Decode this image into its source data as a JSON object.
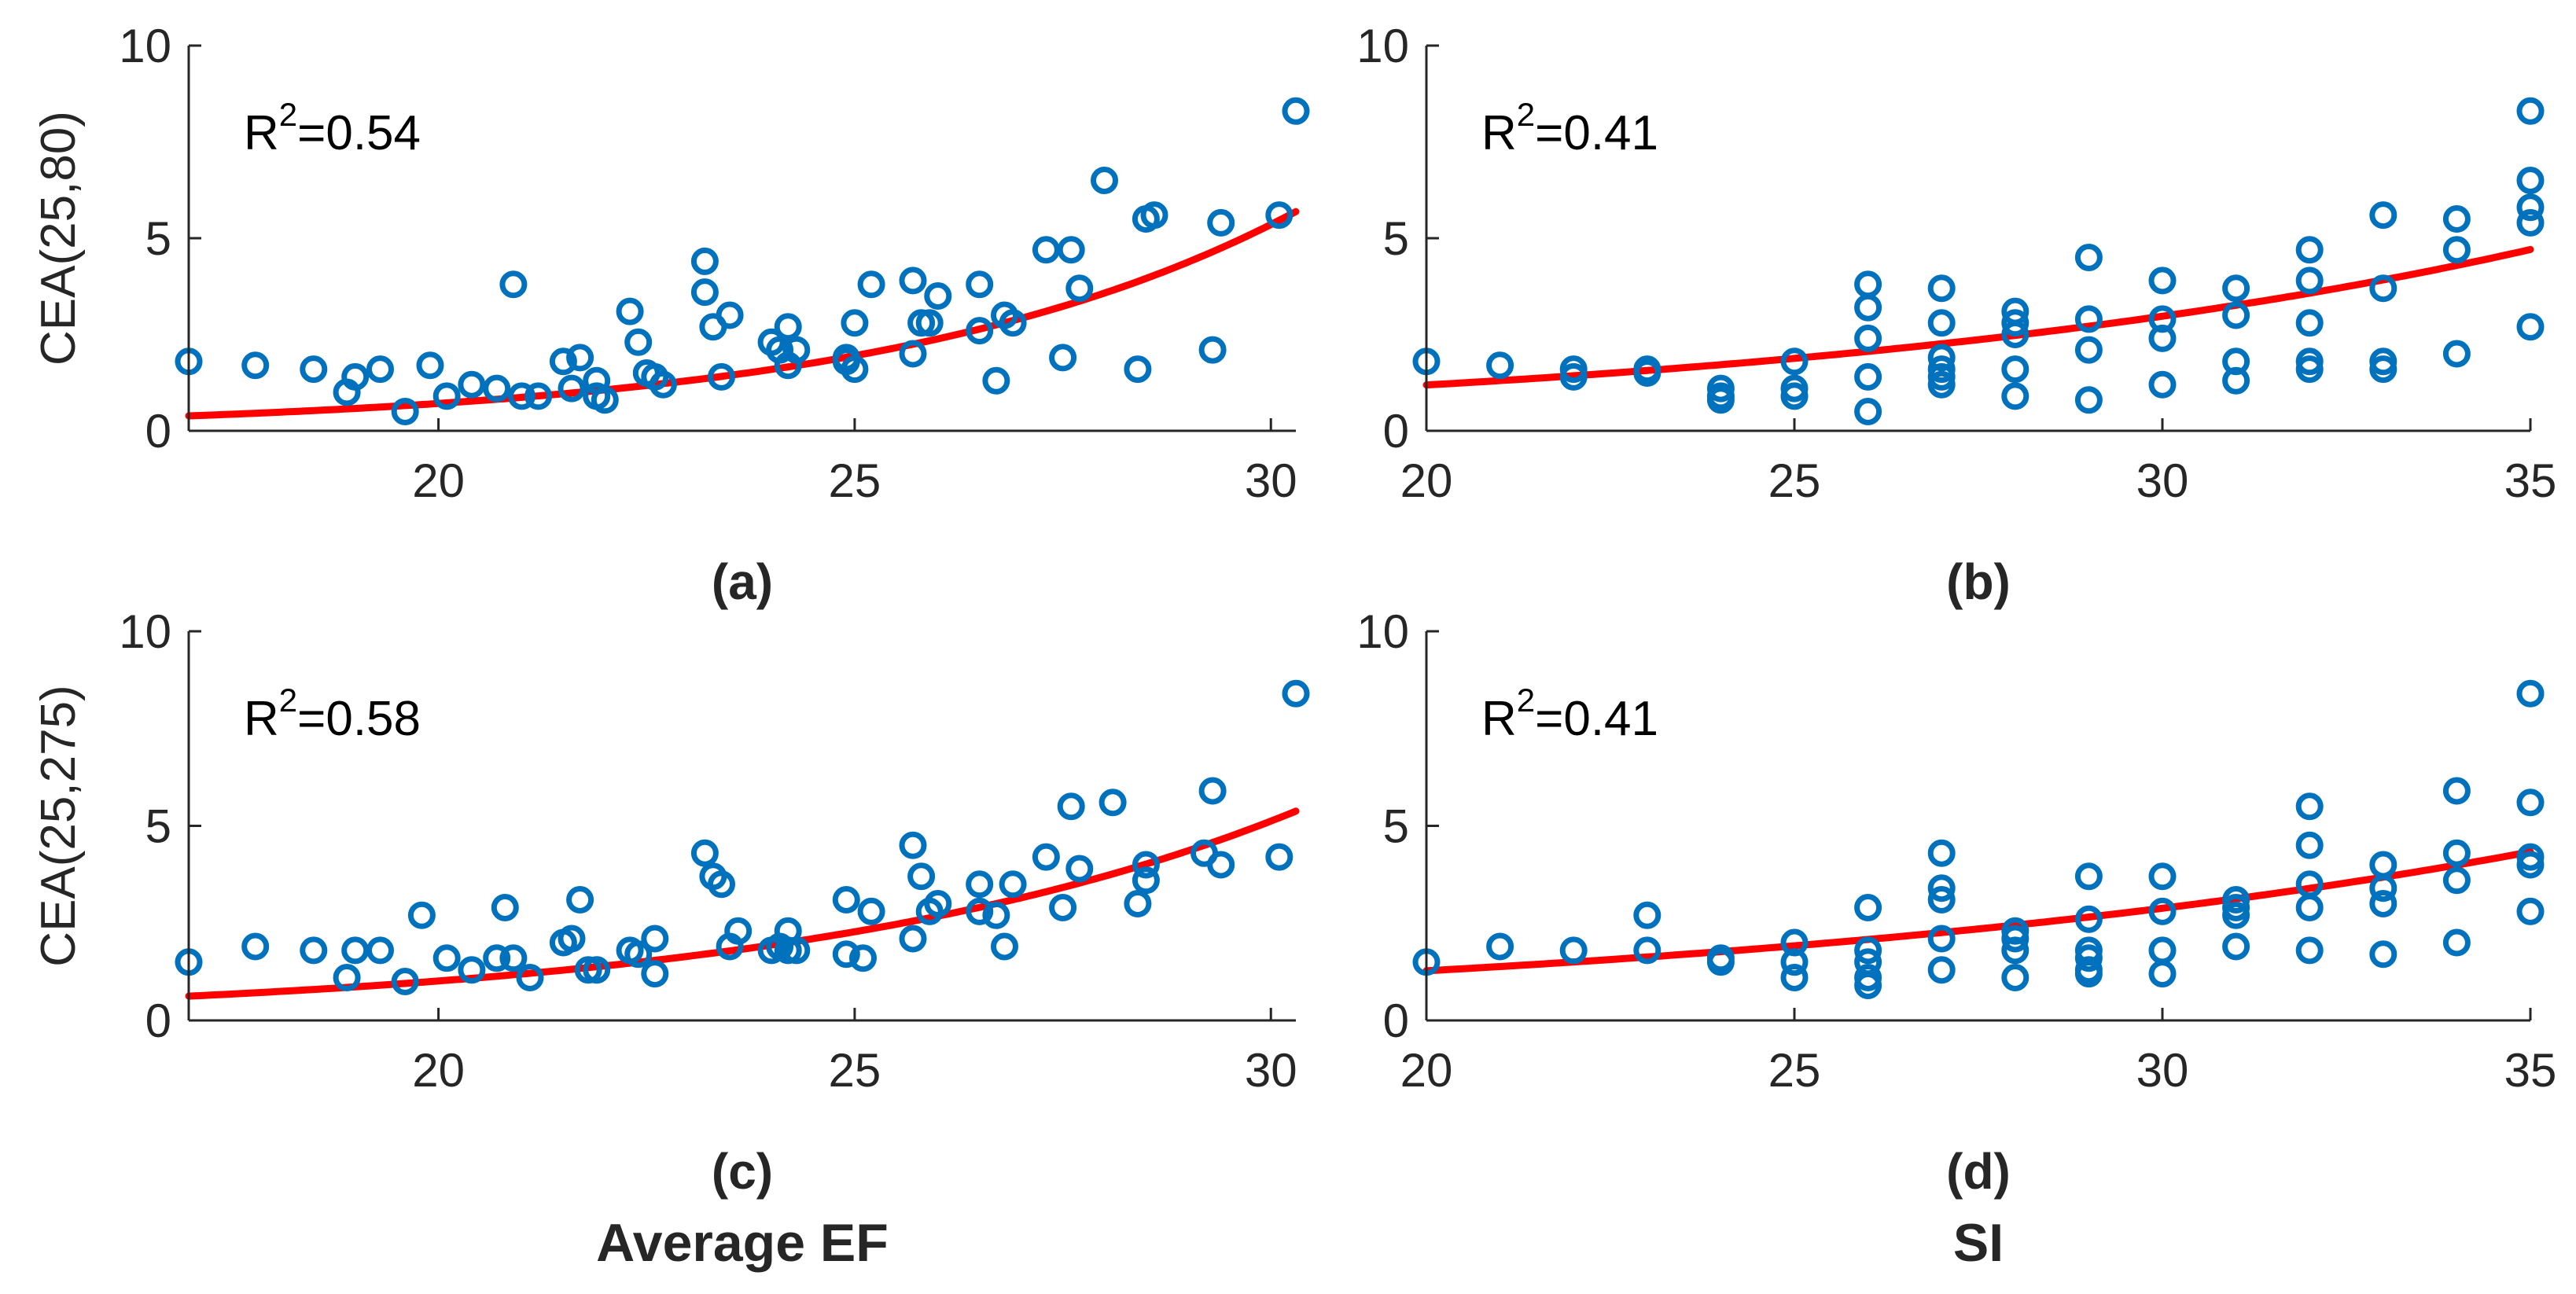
{
  "colors": {
    "marker": "#0072BD",
    "fit": "#FF0000",
    "axis": "#262626"
  },
  "chart_data": [
    {
      "id": "a",
      "type": "scatter",
      "panel_label": "(a)",
      "ylabel": "CEA(25,80)",
      "xlabel": "",
      "annotation_base": "R",
      "annotation_exp": "2",
      "annotation_value": "=0.54",
      "xlim": [
        17,
        30.3
      ],
      "ylim": [
        0,
        10
      ],
      "xticks": [
        20,
        25,
        30
      ],
      "yticks": [
        0,
        5,
        10
      ],
      "fit": {
        "model": "exponential",
        "a": 0.0125,
        "b": 0.202
      },
      "x": [
        17.0,
        17.8,
        18.5,
        18.9,
        19.0,
        19.3,
        19.6,
        19.9,
        20.1,
        20.4,
        20.7,
        20.9,
        21.0,
        21.2,
        21.5,
        21.6,
        21.7,
        21.9,
        21.9,
        22.0,
        22.3,
        22.4,
        22.5,
        22.6,
        22.7,
        23.2,
        23.2,
        23.3,
        23.4,
        23.5,
        24.0,
        24.1,
        24.2,
        24.2,
        24.3,
        24.9,
        24.9,
        25.0,
        25.0,
        25.2,
        25.7,
        25.7,
        25.8,
        25.9,
        26.0,
        26.5,
        26.5,
        26.7,
        26.8,
        26.9,
        27.3,
        27.5,
        27.6,
        27.7,
        28.0,
        28.4,
        28.5,
        28.6,
        29.3,
        29.4,
        30.1,
        30.3
      ],
      "y": [
        1.8,
        1.7,
        1.6,
        1.0,
        1.4,
        1.6,
        0.5,
        1.7,
        0.9,
        1.2,
        1.1,
        3.8,
        0.9,
        0.9,
        1.8,
        1.1,
        1.9,
        1.3,
        0.9,
        0.8,
        3.1,
        2.3,
        1.5,
        1.4,
        1.2,
        4.4,
        3.6,
        2.7,
        1.4,
        3.0,
        2.3,
        2.1,
        1.7,
        2.7,
        2.1,
        1.8,
        1.9,
        1.6,
        2.8,
        3.8,
        3.9,
        2.0,
        2.8,
        2.8,
        3.5,
        3.8,
        2.6,
        1.3,
        3.0,
        2.8,
        4.7,
        1.9,
        4.7,
        3.7,
        6.5,
        1.6,
        5.5,
        5.6,
        2.1,
        5.4,
        5.6,
        8.3
      ]
    },
    {
      "id": "b",
      "type": "scatter",
      "panel_label": "(b)",
      "ylabel": "",
      "xlabel": "",
      "annotation_base": "R",
      "annotation_exp": "2",
      "annotation_value": "=0.41",
      "xlim": [
        20,
        35
      ],
      "ylim": [
        0,
        10
      ],
      "xticks": [
        20,
        25,
        30,
        35
      ],
      "yticks": [
        0,
        5,
        10
      ],
      "fit": {
        "model": "exponential",
        "a": 0.19,
        "b": 0.0917
      },
      "x": [
        20,
        21,
        22,
        22,
        23,
        23,
        24,
        24,
        24,
        25,
        25,
        25,
        26,
        26,
        26,
        26,
        26,
        27,
        27,
        27,
        27,
        27,
        27,
        28,
        28,
        28,
        28,
        28,
        29,
        29,
        29,
        29,
        30,
        30,
        30,
        30,
        31,
        31,
        31,
        31,
        32,
        32,
        32,
        32,
        32,
        33,
        33,
        33,
        33,
        34,
        34,
        34,
        35,
        35,
        35,
        35,
        35
      ],
      "y": [
        1.8,
        1.7,
        1.6,
        1.4,
        1.6,
        1.5,
        1.1,
        0.9,
        0.8,
        1.8,
        1.1,
        0.9,
        3.8,
        3.2,
        2.4,
        1.4,
        0.5,
        3.7,
        2.8,
        1.9,
        1.6,
        1.4,
        1.2,
        3.1,
        2.8,
        2.5,
        1.6,
        0.9,
        4.5,
        2.9,
        2.1,
        0.8,
        3.9,
        2.9,
        2.4,
        1.2,
        3.7,
        3.0,
        1.8,
        1.3,
        4.7,
        3.9,
        2.8,
        1.8,
        1.6,
        5.6,
        3.7,
        1.8,
        1.6,
        5.5,
        4.7,
        2.0,
        8.3,
        6.5,
        5.8,
        5.4,
        2.7
      ]
    },
    {
      "id": "c",
      "type": "scatter",
      "panel_label": "(c)",
      "ylabel": "CEA(25,275)",
      "xlabel": "Average EF",
      "annotation_base": "R",
      "annotation_exp": "2",
      "annotation_value": "=0.58",
      "xlim": [
        17,
        30.3
      ],
      "ylim": [
        0,
        10
      ],
      "xticks": [
        20,
        25,
        30
      ],
      "yticks": [
        0,
        5,
        10
      ],
      "fit": {
        "model": "exponential",
        "a": 0.0397,
        "b": 0.162
      },
      "x": [
        17.0,
        17.8,
        18.5,
        18.9,
        19.0,
        19.3,
        19.6,
        19.8,
        20.1,
        20.4,
        20.7,
        20.8,
        20.9,
        21.1,
        21.5,
        21.6,
        21.7,
        21.8,
        21.9,
        22.3,
        22.4,
        22.6,
        22.6,
        23.2,
        23.3,
        23.4,
        23.5,
        23.6,
        24.0,
        24.1,
        24.2,
        24.2,
        24.3,
        24.9,
        24.9,
        25.1,
        25.2,
        25.7,
        25.7,
        25.8,
        25.9,
        26.0,
        26.5,
        26.5,
        26.7,
        26.8,
        26.9,
        27.3,
        27.5,
        27.6,
        27.7,
        28.1,
        28.4,
        28.5,
        28.5,
        29.2,
        29.3,
        29.4,
        30.1,
        30.3
      ],
      "y": [
        1.5,
        1.9,
        1.8,
        1.1,
        1.8,
        1.8,
        1.0,
        2.7,
        1.6,
        1.3,
        1.6,
        2.9,
        1.6,
        1.1,
        2.0,
        2.1,
        3.1,
        1.3,
        1.3,
        1.8,
        1.7,
        2.1,
        1.2,
        4.3,
        3.7,
        3.5,
        1.9,
        2.3,
        1.8,
        1.9,
        2.3,
        1.8,
        1.8,
        3.1,
        1.7,
        1.6,
        2.8,
        4.5,
        2.1,
        3.7,
        2.8,
        3.0,
        3.5,
        2.8,
        2.7,
        1.9,
        3.5,
        4.2,
        2.9,
        5.5,
        3.9,
        5.6,
        3.0,
        3.6,
        4.0,
        4.3,
        5.9,
        4.0,
        4.2,
        8.4
      ]
    },
    {
      "id": "d",
      "type": "scatter",
      "panel_label": "(d)",
      "ylabel": "",
      "xlabel": "SI",
      "annotation_base": "R",
      "annotation_exp": "2",
      "annotation_value": "=0.41",
      "xlim": [
        20,
        35
      ],
      "ylim": [
        0,
        10
      ],
      "xticks": [
        20,
        25,
        30,
        35
      ],
      "yticks": [
        0,
        5,
        10
      ],
      "fit": {
        "model": "exponential",
        "a": 0.25,
        "b": 0.0815
      },
      "x": [
        20,
        21,
        22,
        23,
        23,
        24,
        24,
        25,
        25,
        25,
        26,
        26,
        26,
        26,
        26,
        27,
        27,
        27,
        27,
        27,
        28,
        28,
        28,
        28,
        29,
        29,
        29,
        29,
        29,
        29,
        30,
        30,
        30,
        30,
        31,
        31,
        31,
        31,
        32,
        32,
        32,
        32,
        32,
        33,
        33,
        33,
        33,
        34,
        34,
        34,
        34,
        35,
        35,
        35,
        35,
        35
      ],
      "y": [
        1.5,
        1.9,
        1.8,
        2.7,
        1.8,
        1.6,
        1.5,
        2.0,
        1.5,
        1.1,
        2.9,
        1.8,
        1.5,
        1.1,
        0.9,
        4.3,
        3.4,
        3.1,
        2.1,
        1.3,
        2.3,
        2.1,
        1.8,
        1.1,
        3.7,
        2.6,
        1.8,
        1.6,
        1.3,
        1.2,
        3.7,
        2.8,
        1.8,
        1.2,
        3.1,
        2.9,
        2.7,
        1.9,
        5.5,
        4.5,
        3.5,
        2.9,
        1.8,
        4.0,
        3.4,
        3.0,
        1.7,
        5.9,
        4.3,
        3.6,
        2.0,
        8.4,
        5.6,
        4.2,
        4.0,
        2.8
      ]
    }
  ]
}
